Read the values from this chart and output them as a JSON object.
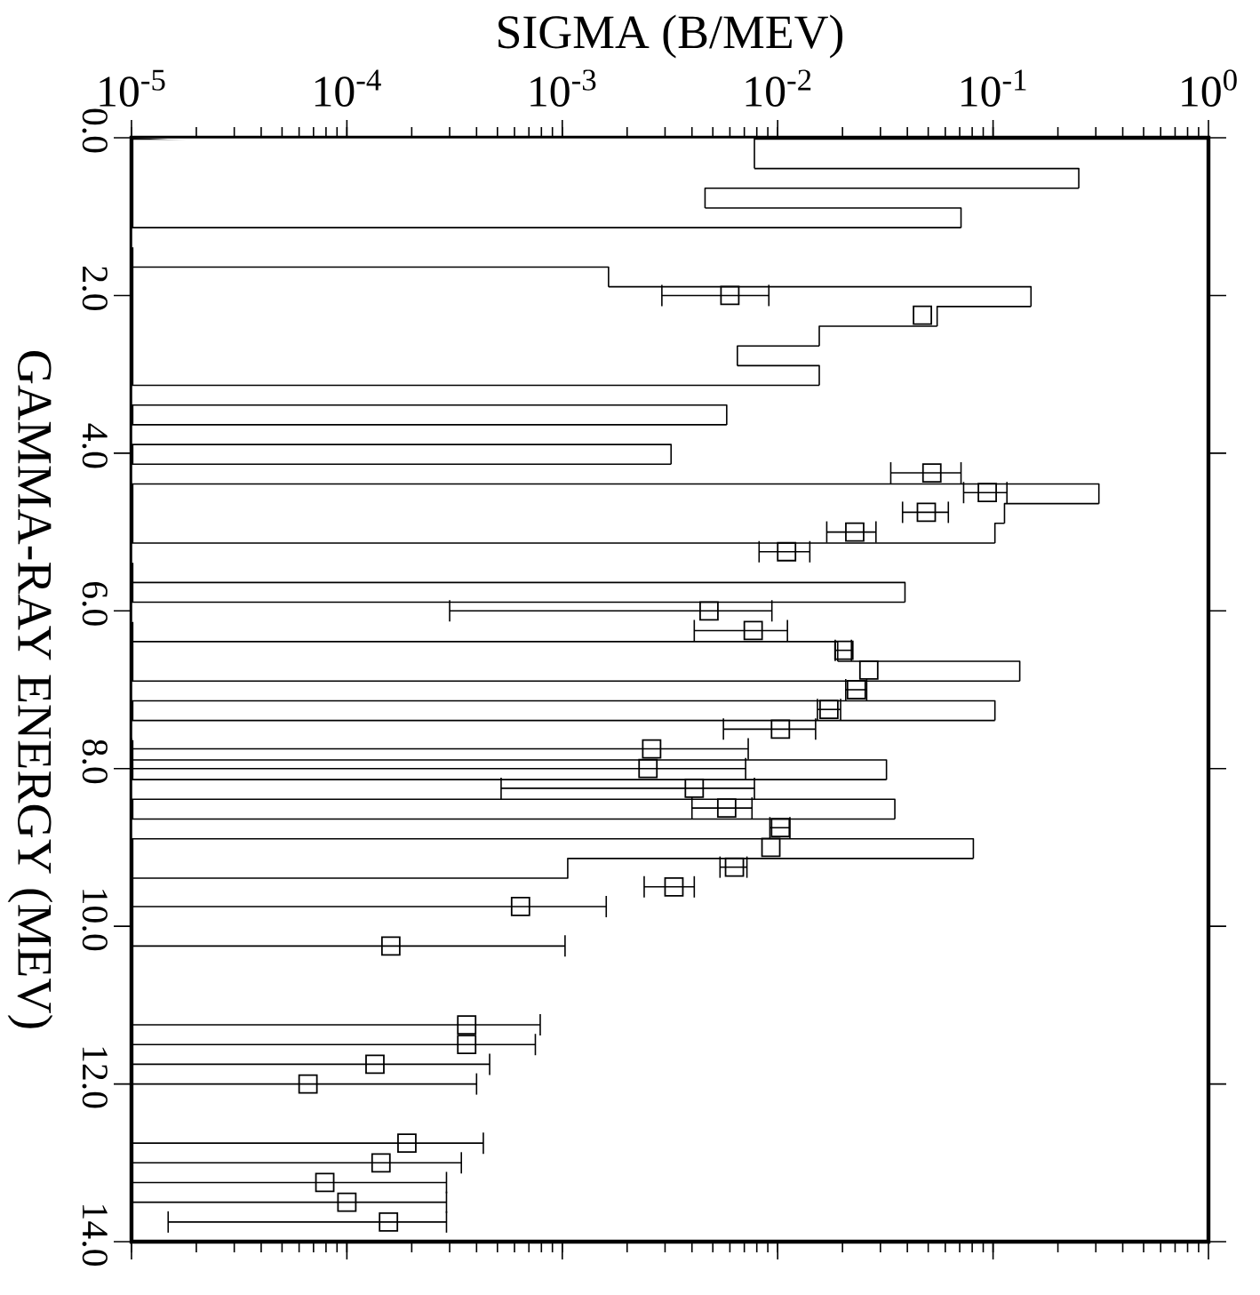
{
  "chart_data": {
    "type": "histogram",
    "orientation": "horizontal",
    "xlabel": "SIGMA (B/MEV)",
    "ylabel": "GAMMA-RAY ENERGY (MEV)",
    "log": "x",
    "marker": "square",
    "xlim": [
      1e-05,
      1
    ],
    "ylim": [
      14,
      0
    ],
    "xticks": [
      {
        "value": 1e-05,
        "label": "10$^{-5}$"
      },
      {
        "value": 0.0001,
        "label": "10$^{-4}$"
      },
      {
        "value": 0.001,
        "label": "10$^{-3}$"
      },
      {
        "value": 0.01,
        "label": "10$^{-2}$"
      },
      {
        "value": 0.1,
        "label": "10$^{-1}$"
      },
      {
        "value": 1,
        "label": "10$^{0}$"
      }
    ],
    "yticks": [
      {
        "value": 0,
        "label": "0.0"
      },
      {
        "value": 2,
        "label": "2.0"
      },
      {
        "value": 4,
        "label": "4.0"
      },
      {
        "value": 6,
        "label": "6.0"
      },
      {
        "value": 8,
        "label": "8.0"
      },
      {
        "value": 10,
        "label": "10.0"
      },
      {
        "value": 12,
        "label": "12.0"
      },
      {
        "value": 14,
        "label": "14.0"
      }
    ],
    "series": [
      {
        "color": "#000000",
        "bins": [
          0,
          0.39,
          0.64,
          0.89,
          1.14,
          1.39,
          1.64,
          1.89,
          2.14,
          2.39,
          2.64,
          2.89,
          3.14,
          3.39,
          3.64,
          3.89,
          4.14,
          4.39,
          4.64,
          4.89,
          5.14,
          5.39,
          5.64,
          5.89,
          6.14,
          6.39,
          6.64,
          6.89,
          7.14,
          7.39,
          7.64,
          7.89,
          8.14,
          8.39,
          8.64,
          8.89,
          9.14,
          9.39
        ],
        "values": [
          0.0078,
          0.25,
          0.0046,
          0.071,
          null,
          null,
          0.00164,
          0.15,
          0.055,
          0.0156,
          0.0065,
          0.0156,
          null,
          0.0058,
          null,
          0.0032,
          null,
          0.31,
          0.113,
          0.102,
          null,
          null,
          0.039,
          null,
          null,
          0.019,
          0.133,
          null,
          0.102,
          null,
          null,
          0.032,
          null,
          0.035,
          null,
          0.081,
          0.00106
        ]
      },
      {
        "type": "scatter",
        "color": "#000000",
        "x": [
          2.0,
          2.25,
          4.25,
          4.5,
          4.75,
          5.0,
          5.25,
          6.0,
          6.25,
          6.5,
          6.75,
          7.0,
          7.25,
          7.5,
          7.75,
          8.0,
          8.25,
          8.5,
          8.75,
          9.0,
          9.25,
          9.5,
          9.75,
          10.25,
          11.25,
          11.5,
          11.75,
          12.0,
          12.75,
          13.0,
          13.25,
          13.5,
          13.75
        ],
        "values": [
          0.006,
          0.047,
          0.052,
          0.094,
          0.049,
          0.0228,
          0.011,
          0.0048,
          0.0077,
          0.0203,
          0.0265,
          0.0232,
          0.0173,
          0.0103,
          0.0026,
          0.0025,
          0.0041,
          0.0058,
          0.0103,
          0.0093,
          0.0063,
          0.0033,
          0.00064,
          0.00016,
          0.00036,
          0.00036,
          0.000135,
          6.6e-05,
          0.00019,
          0.000144,
          7.9e-05,
          0.0001,
          0.000156
        ],
        "errors": [
          [
            0.0029,
            0.0091
          ],
          null,
          [
            0.0335,
            0.071
          ],
          [
            0.073,
            0.116
          ],
          [
            0.038,
            0.062
          ],
          [
            0.0169,
            0.0286
          ],
          [
            0.0082,
            0.0141
          ],
          [
            0.0003,
            0.0094
          ],
          [
            0.0041,
            0.0111
          ],
          [
            0.0185,
            0.022
          ],
          null,
          [
            0.0207,
            0.0259
          ],
          [
            0.0153,
            0.0196
          ],
          [
            0.0056,
            0.015
          ],
          [
            1e-05,
            0.0073
          ],
          [
            1e-05,
            0.0071
          ],
          [
            0.00052,
            0.0078
          ],
          [
            0.004,
            0.0076
          ],
          [
            0.0092,
            0.0114
          ],
          null,
          [
            0.0054,
            0.0072
          ],
          [
            0.0024,
            0.0041
          ],
          [
            1e-05,
            0.0016
          ],
          [
            1e-05,
            0.00103
          ],
          [
            1e-05,
            0.00079
          ],
          [
            1e-05,
            0.00075
          ],
          [
            1e-05,
            0.00046
          ],
          [
            1e-05,
            0.0004
          ],
          [
            1e-05,
            0.00043
          ],
          [
            1e-05,
            0.00034
          ],
          [
            1e-05,
            0.00029
          ],
          [
            1e-05,
            0.00029
          ],
          [
            1.48e-05,
            0.00029
          ]
        ]
      }
    ]
  }
}
